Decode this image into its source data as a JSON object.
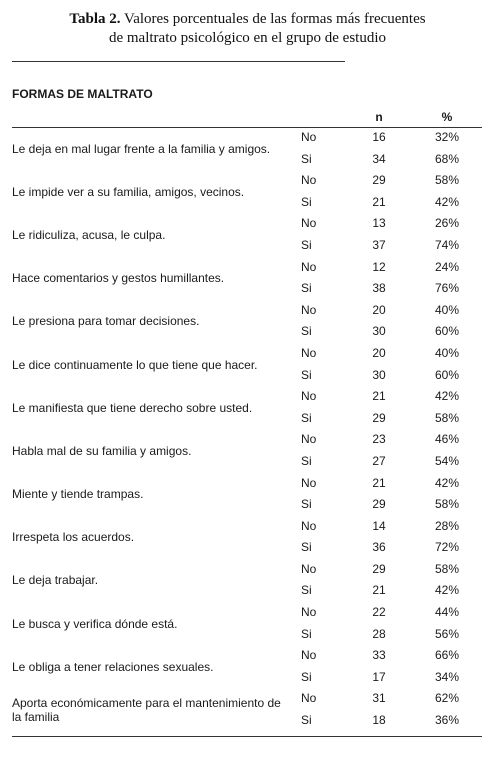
{
  "caption": {
    "label": "Tabla 2.",
    "text_line1": "Valores porcentuales de las formas más frecuentes",
    "text_line2": "de maltrato psicológico en el grupo de estudio"
  },
  "table": {
    "section_title": "FORMAS DE MALTRATO",
    "headers": {
      "n": "n",
      "pct": "%"
    },
    "rows": [
      {
        "label": "Le deja en mal lugar frente a la familia y amigos.",
        "responses": [
          {
            "answer": "No",
            "n": "16",
            "pct": "32%"
          },
          {
            "answer": "Si",
            "n": "34",
            "pct": "68%"
          }
        ]
      },
      {
        "label": "Le impide ver a su familia, amigos, vecinos.",
        "responses": [
          {
            "answer": "No",
            "n": "29",
            "pct": "58%"
          },
          {
            "answer": "Si",
            "n": "21",
            "pct": "42%"
          }
        ]
      },
      {
        "label": "Le ridiculiza, acusa, le culpa.",
        "responses": [
          {
            "answer": "No",
            "n": "13",
            "pct": "26%"
          },
          {
            "answer": "Si",
            "n": "37",
            "pct": "74%"
          }
        ]
      },
      {
        "label": "Hace comentarios y gestos humillantes.",
        "responses": [
          {
            "answer": "No",
            "n": "12",
            "pct": "24%"
          },
          {
            "answer": "Si",
            "n": "38",
            "pct": "76%"
          }
        ]
      },
      {
        "label": "Le presiona para tomar decisiones.",
        "responses": [
          {
            "answer": "No",
            "n": "20",
            "pct": "40%"
          },
          {
            "answer": "Si",
            "n": "30",
            "pct": "60%"
          }
        ]
      },
      {
        "label": "Le dice continuamente lo que tiene que hacer.",
        "responses": [
          {
            "answer": "No",
            "n": "20",
            "pct": "40%"
          },
          {
            "answer": "Si",
            "n": "30",
            "pct": "60%"
          }
        ]
      },
      {
        "label": "Le manifiesta que tiene derecho sobre usted.",
        "responses": [
          {
            "answer": "No",
            "n": "21",
            "pct": "42%"
          },
          {
            "answer": "Si",
            "n": "29",
            "pct": "58%"
          }
        ]
      },
      {
        "label": "Habla mal de su familia y amigos.",
        "responses": [
          {
            "answer": "No",
            "n": "23",
            "pct": "46%"
          },
          {
            "answer": "Si",
            "n": "27",
            "pct": "54%"
          }
        ]
      },
      {
        "label": "Miente y tiende trampas.",
        "responses": [
          {
            "answer": "No",
            "n": "21",
            "pct": "42%"
          },
          {
            "answer": "Si",
            "n": "29",
            "pct": "58%"
          }
        ]
      },
      {
        "label": "Irrespeta los acuerdos.",
        "responses": [
          {
            "answer": "No",
            "n": "14",
            "pct": "28%"
          },
          {
            "answer": "Si",
            "n": "36",
            "pct": "72%"
          }
        ]
      },
      {
        "label": "Le deja trabajar.",
        "responses": [
          {
            "answer": "No",
            "n": "29",
            "pct": "58%"
          },
          {
            "answer": "Si",
            "n": "21",
            "pct": "42%"
          }
        ]
      },
      {
        "label": "Le busca y verifica dónde está.",
        "responses": [
          {
            "answer": "No",
            "n": "22",
            "pct": "44%"
          },
          {
            "answer": "Si",
            "n": "28",
            "pct": "56%"
          }
        ]
      },
      {
        "label": "Le obliga a tener relaciones sexuales.",
        "responses": [
          {
            "answer": "No",
            "n": "33",
            "pct": "66%"
          },
          {
            "answer": "Si",
            "n": "17",
            "pct": "34%"
          }
        ]
      },
      {
        "label": "Aporta económicamente para el mantenimiento de la familia",
        "responses": [
          {
            "answer": "No",
            "n": "31",
            "pct": "62%"
          },
          {
            "answer": "Si",
            "n": "18",
            "pct": "36%"
          }
        ]
      }
    ]
  }
}
